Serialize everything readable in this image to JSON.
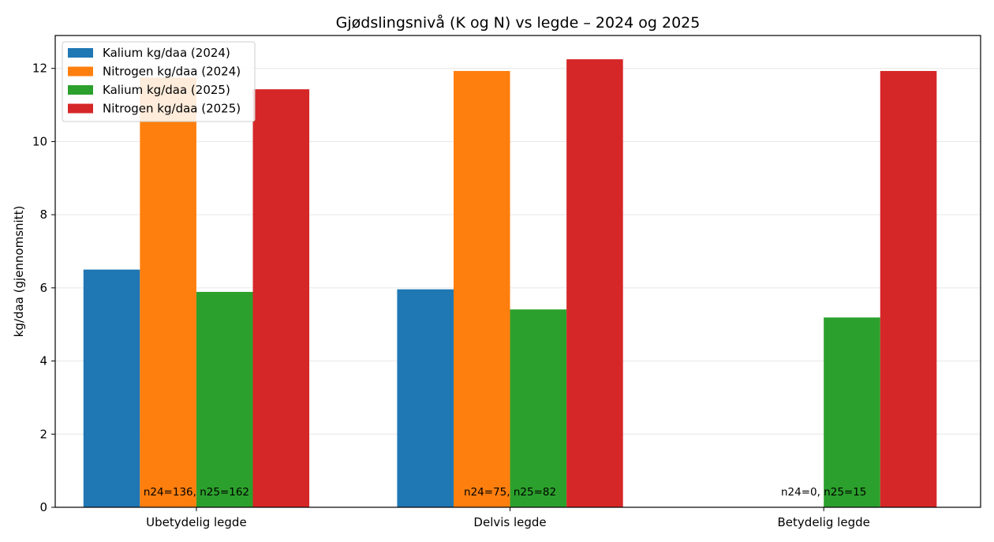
{
  "chart_data": {
    "type": "bar",
    "title": "Gjødslingsnivå (K og N) vs legde – 2024 og 2025",
    "xlabel": "",
    "ylabel": "kg/daa (gjennomsnitt)",
    "ylim": [
      0,
      12.9
    ],
    "yticks": [
      0,
      2,
      4,
      6,
      8,
      10,
      12
    ],
    "grid": true,
    "legend_position": "top-left",
    "categories": [
      "Ubetydelig legde",
      "Delvis legde",
      "Betydelig legde"
    ],
    "series": [
      {
        "name": "Kalium kg/daa (2024)",
        "color": "#1f77b4",
        "values": [
          6.5,
          5.96,
          null
        ]
      },
      {
        "name": "Nitrogen kg/daa (2024)",
        "color": "#ff7f0e",
        "values": [
          11.75,
          11.93,
          null
        ]
      },
      {
        "name": "Kalium kg/daa (2025)",
        "color": "#2ca02c",
        "values": [
          5.89,
          5.41,
          5.19
        ]
      },
      {
        "name": "Nitrogen kg/daa (2025)",
        "color": "#d62728",
        "values": [
          11.43,
          12.25,
          11.93
        ]
      }
    ],
    "annotations": [
      "n24=136, n25=162",
      "n24=75, n25=82",
      "n24=0, n25=15"
    ]
  }
}
